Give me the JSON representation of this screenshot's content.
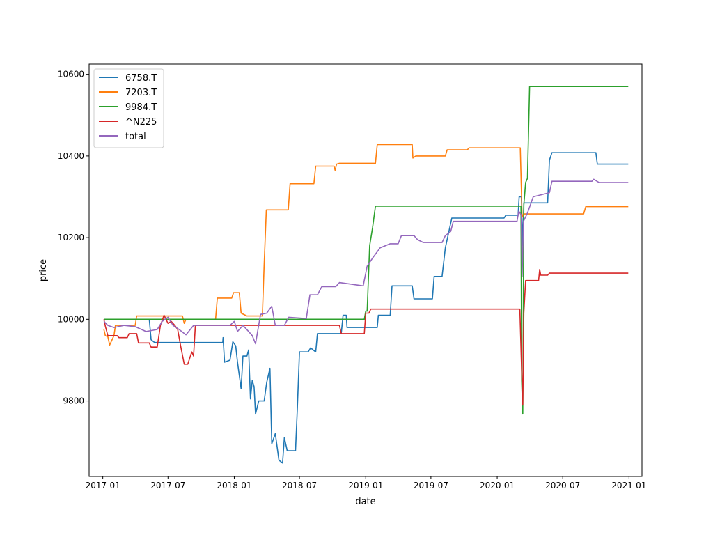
{
  "chart_data": {
    "type": "line",
    "xlabel": "date",
    "ylabel": "price",
    "x_axis_type": "date",
    "xlim": [
      "2016-11-24",
      "2021-02-06"
    ],
    "ylim": [
      9615,
      10625
    ],
    "x_ticks": [
      {
        "date": "2017-01-01",
        "label": "2017-01"
      },
      {
        "date": "2017-07-01",
        "label": "2017-07"
      },
      {
        "date": "2018-01-01",
        "label": "2018-01"
      },
      {
        "date": "2018-07-01",
        "label": "2018-07"
      },
      {
        "date": "2019-01-01",
        "label": "2019-01"
      },
      {
        "date": "2019-07-01",
        "label": "2019-07"
      },
      {
        "date": "2020-01-01",
        "label": "2020-01"
      },
      {
        "date": "2020-07-01",
        "label": "2020-07"
      },
      {
        "date": "2021-01-01",
        "label": "2021-01"
      }
    ],
    "y_ticks": [
      {
        "value": 9800,
        "label": "9800"
      },
      {
        "value": 10000,
        "label": "10000"
      },
      {
        "value": 10200,
        "label": "10200"
      },
      {
        "value": 10400,
        "label": "10400"
      },
      {
        "value": 10600,
        "label": "10600"
      }
    ],
    "grid": false,
    "legend_position": "top-left",
    "series": [
      {
        "name": "6758.T",
        "color": "#1f77b4",
        "points": [
          [
            "2017-01-04",
            10000
          ],
          [
            "2017-05-10",
            10000
          ],
          [
            "2017-05-15",
            9950
          ],
          [
            "2017-05-25",
            9943
          ],
          [
            "2017-11-30",
            9943
          ],
          [
            "2017-12-01",
            9955
          ],
          [
            "2017-12-05",
            9895
          ],
          [
            "2017-12-20",
            9900
          ],
          [
            "2017-12-28",
            9945
          ],
          [
            "2018-01-05",
            9935
          ],
          [
            "2018-01-10",
            9895
          ],
          [
            "2018-01-20",
            9830
          ],
          [
            "2018-01-25",
            9910
          ],
          [
            "2018-02-05",
            9910
          ],
          [
            "2018-02-10",
            9925
          ],
          [
            "2018-02-15",
            9805
          ],
          [
            "2018-02-20",
            9850
          ],
          [
            "2018-02-25",
            9835
          ],
          [
            "2018-03-01",
            9768
          ],
          [
            "2018-03-10",
            9800
          ],
          [
            "2018-03-25",
            9800
          ],
          [
            "2018-04-01",
            9845
          ],
          [
            "2018-04-10",
            9880
          ],
          [
            "2018-04-15",
            9695
          ],
          [
            "2018-04-25",
            9720
          ],
          [
            "2018-05-05",
            9655
          ],
          [
            "2018-05-15",
            9648
          ],
          [
            "2018-05-20",
            9710
          ],
          [
            "2018-05-28",
            9678
          ],
          [
            "2018-06-20",
            9678
          ],
          [
            "2018-06-25",
            9780
          ],
          [
            "2018-07-01",
            9920
          ],
          [
            "2018-07-25",
            9920
          ],
          [
            "2018-08-01",
            9930
          ],
          [
            "2018-08-15",
            9920
          ],
          [
            "2018-08-20",
            9965
          ],
          [
            "2018-10-25",
            9965
          ],
          [
            "2018-10-30",
            10010
          ],
          [
            "2018-11-08",
            10010
          ],
          [
            "2018-11-10",
            9980
          ],
          [
            "2019-02-02",
            9980
          ],
          [
            "2019-02-05",
            10010
          ],
          [
            "2019-03-10",
            10010
          ],
          [
            "2019-03-15",
            10082
          ],
          [
            "2019-05-10",
            10082
          ],
          [
            "2019-05-15",
            10050
          ],
          [
            "2019-07-05",
            10050
          ],
          [
            "2019-07-10",
            10105
          ],
          [
            "2019-08-01",
            10105
          ],
          [
            "2019-08-10",
            10175
          ],
          [
            "2019-08-28",
            10248
          ],
          [
            "2020-01-20",
            10248
          ],
          [
            "2020-01-25",
            10255
          ],
          [
            "2020-02-28",
            10255
          ],
          [
            "2020-03-02",
            10300
          ],
          [
            "2020-03-08",
            10300
          ],
          [
            "2020-03-12",
            10180
          ],
          [
            "2020-03-15",
            10285
          ],
          [
            "2020-05-20",
            10285
          ],
          [
            "2020-05-25",
            10390
          ],
          [
            "2020-06-01",
            10408
          ],
          [
            "2020-10-01",
            10408
          ],
          [
            "2020-10-05",
            10380
          ],
          [
            "2020-12-30",
            10380
          ]
        ]
      },
      {
        "name": "7203.T",
        "color": "#ff7f0e",
        "points": [
          [
            "2017-01-04",
            9975
          ],
          [
            "2017-01-08",
            9960
          ],
          [
            "2017-01-15",
            9957
          ],
          [
            "2017-01-20",
            9937
          ],
          [
            "2017-02-01",
            9960
          ],
          [
            "2017-02-05",
            9985
          ],
          [
            "2017-04-01",
            9985
          ],
          [
            "2017-04-05",
            10008
          ],
          [
            "2017-08-10",
            10008
          ],
          [
            "2017-08-15",
            9990
          ],
          [
            "2017-08-20",
            10000
          ],
          [
            "2017-11-10",
            10000
          ],
          [
            "2017-11-15",
            10052
          ],
          [
            "2017-12-25",
            10052
          ],
          [
            "2017-12-30",
            10065
          ],
          [
            "2018-01-15",
            10065
          ],
          [
            "2018-01-20",
            10015
          ],
          [
            "2018-02-05",
            10008
          ],
          [
            "2018-03-20",
            10008
          ],
          [
            "2018-03-25",
            10135
          ],
          [
            "2018-03-31",
            10268
          ],
          [
            "2018-05-31",
            10268
          ],
          [
            "2018-06-05",
            10332
          ],
          [
            "2018-08-10",
            10332
          ],
          [
            "2018-08-15",
            10375
          ],
          [
            "2018-09-25",
            10375
          ],
          [
            "2018-10-05",
            10375
          ],
          [
            "2018-10-08",
            10365
          ],
          [
            "2018-10-12",
            10380
          ],
          [
            "2018-10-20",
            10382
          ],
          [
            "2019-01-28",
            10382
          ],
          [
            "2019-02-02",
            10428
          ],
          [
            "2019-05-10",
            10428
          ],
          [
            "2019-05-12",
            10395
          ],
          [
            "2019-05-20",
            10400
          ],
          [
            "2019-08-10",
            10400
          ],
          [
            "2019-08-15",
            10415
          ],
          [
            "2019-10-10",
            10415
          ],
          [
            "2019-10-15",
            10420
          ],
          [
            "2020-03-05",
            10420
          ],
          [
            "2020-03-10",
            10250
          ],
          [
            "2020-03-14",
            10258
          ],
          [
            "2020-08-28",
            10258
          ],
          [
            "2020-09-03",
            10276
          ],
          [
            "2020-12-30",
            10276
          ]
        ]
      },
      {
        "name": "9984.T",
        "color": "#2ca02c",
        "points": [
          [
            "2017-01-04",
            10000
          ],
          [
            "2018-12-28",
            10000
          ],
          [
            "2019-01-01",
            10020
          ],
          [
            "2019-01-05",
            10020
          ],
          [
            "2019-01-12",
            10180
          ],
          [
            "2019-01-20",
            10225
          ],
          [
            "2019-01-28",
            10277
          ],
          [
            "2020-03-07",
            10277
          ],
          [
            "2020-03-09",
            9850
          ],
          [
            "2020-03-12",
            9768
          ],
          [
            "2020-03-15",
            10280
          ],
          [
            "2020-03-20",
            10335
          ],
          [
            "2020-03-25",
            10345
          ],
          [
            "2020-03-31",
            10570
          ],
          [
            "2020-12-30",
            10570
          ]
        ]
      },
      {
        "name": "^N225",
        "color": "#d62728",
        "points": [
          [
            "2017-01-04",
            10000
          ],
          [
            "2017-01-08",
            9983
          ],
          [
            "2017-01-15",
            9960
          ],
          [
            "2017-02-10",
            9960
          ],
          [
            "2017-02-15",
            9955
          ],
          [
            "2017-03-10",
            9955
          ],
          [
            "2017-03-15",
            9965
          ],
          [
            "2017-04-05",
            9965
          ],
          [
            "2017-04-10",
            9942
          ],
          [
            "2017-05-10",
            9942
          ],
          [
            "2017-05-15",
            9932
          ],
          [
            "2017-06-01",
            9932
          ],
          [
            "2017-06-10",
            9985
          ],
          [
            "2017-06-20",
            10010
          ],
          [
            "2017-07-01",
            9990
          ],
          [
            "2017-07-10",
            9995
          ],
          [
            "2017-07-20",
            9985
          ],
          [
            "2017-07-28",
            9975
          ],
          [
            "2017-08-05",
            9935
          ],
          [
            "2017-08-15",
            9890
          ],
          [
            "2017-08-25",
            9890
          ],
          [
            "2017-09-05",
            9920
          ],
          [
            "2017-09-10",
            9910
          ],
          [
            "2017-09-15",
            9985
          ],
          [
            "2018-10-20",
            9985
          ],
          [
            "2018-10-25",
            9965
          ],
          [
            "2018-12-28",
            9965
          ],
          [
            "2019-01-01",
            10015
          ],
          [
            "2019-01-10",
            10015
          ],
          [
            "2019-01-15",
            10025
          ],
          [
            "2020-03-04",
            10025
          ],
          [
            "2020-03-08",
            9900
          ],
          [
            "2020-03-12",
            9790
          ],
          [
            "2020-03-15",
            10015
          ],
          [
            "2020-03-20",
            10095
          ],
          [
            "2020-04-25",
            10095
          ],
          [
            "2020-04-28",
            10122
          ],
          [
            "2020-05-01",
            10108
          ],
          [
            "2020-05-20",
            10108
          ],
          [
            "2020-05-25",
            10113
          ],
          [
            "2020-12-30",
            10113
          ]
        ]
      },
      {
        "name": "total",
        "color": "#9467bd",
        "points": [
          [
            "2017-01-04",
            9995
          ],
          [
            "2017-01-15",
            9985
          ],
          [
            "2017-02-01",
            9980
          ],
          [
            "2017-03-01",
            9985
          ],
          [
            "2017-04-01",
            9982
          ],
          [
            "2017-05-01",
            9970
          ],
          [
            "2017-06-01",
            9975
          ],
          [
            "2017-06-15",
            9995
          ],
          [
            "2017-07-01",
            10005
          ],
          [
            "2017-07-15",
            9985
          ],
          [
            "2017-08-01",
            9975
          ],
          [
            "2017-08-20",
            9962
          ],
          [
            "2017-09-10",
            9985
          ],
          [
            "2017-12-20",
            9985
          ],
          [
            "2018-01-01",
            9995
          ],
          [
            "2018-01-10",
            9970
          ],
          [
            "2018-01-25",
            9985
          ],
          [
            "2018-02-10",
            9970
          ],
          [
            "2018-02-20",
            9960
          ],
          [
            "2018-03-01",
            9940
          ],
          [
            "2018-03-15",
            10012
          ],
          [
            "2018-04-01",
            10015
          ],
          [
            "2018-04-15",
            10032
          ],
          [
            "2018-04-25",
            9985
          ],
          [
            "2018-05-20",
            9985
          ],
          [
            "2018-06-01",
            10005
          ],
          [
            "2018-07-20",
            10002
          ],
          [
            "2018-07-30",
            10060
          ],
          [
            "2018-08-20",
            10060
          ],
          [
            "2018-09-01",
            10080
          ],
          [
            "2018-10-10",
            10080
          ],
          [
            "2018-10-20",
            10090
          ],
          [
            "2018-12-25",
            10082
          ],
          [
            "2019-01-05",
            10130
          ],
          [
            "2019-01-20",
            10150
          ],
          [
            "2019-02-10",
            10175
          ],
          [
            "2019-03-10",
            10185
          ],
          [
            "2019-04-01",
            10185
          ],
          [
            "2019-04-10",
            10205
          ],
          [
            "2019-05-15",
            10205
          ],
          [
            "2019-05-25",
            10195
          ],
          [
            "2019-06-10",
            10188
          ],
          [
            "2019-08-01",
            10188
          ],
          [
            "2019-08-10",
            10205
          ],
          [
            "2019-08-25",
            10215
          ],
          [
            "2019-09-01",
            10240
          ],
          [
            "2020-02-25",
            10240
          ],
          [
            "2020-03-01",
            10265
          ],
          [
            "2020-03-08",
            10255
          ],
          [
            "2020-03-10",
            10105
          ],
          [
            "2020-03-14",
            10240
          ],
          [
            "2020-03-25",
            10260
          ],
          [
            "2020-04-10",
            10300
          ],
          [
            "2020-05-25",
            10310
          ],
          [
            "2020-06-01",
            10338
          ],
          [
            "2020-09-20",
            10338
          ],
          [
            "2020-09-25",
            10343
          ],
          [
            "2020-10-10",
            10335
          ],
          [
            "2020-12-30",
            10335
          ]
        ]
      }
    ]
  }
}
